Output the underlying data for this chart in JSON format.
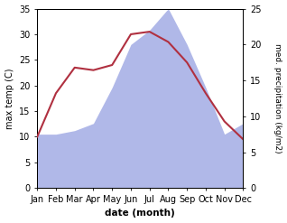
{
  "months": [
    "Jan",
    "Feb",
    "Mar",
    "Apr",
    "May",
    "Jun",
    "Jul",
    "Aug",
    "Sep",
    "Oct",
    "Nov",
    "Dec"
  ],
  "temperature": [
    10.0,
    18.5,
    23.5,
    23.0,
    24.0,
    30.0,
    30.5,
    28.5,
    24.5,
    18.5,
    13.0,
    9.5
  ],
  "precipitation": [
    7.5,
    7.5,
    8.0,
    9.0,
    14.0,
    20.0,
    22.0,
    25.0,
    20.0,
    14.0,
    7.5,
    9.0
  ],
  "temp_color": "#b03040",
  "precip_color": "#b0b8e8",
  "temp_ylim": [
    0,
    35
  ],
  "precip_ylim": [
    0,
    25
  ],
  "temp_yticks": [
    0,
    5,
    10,
    15,
    20,
    25,
    30,
    35
  ],
  "precip_yticks": [
    0,
    5,
    10,
    15,
    20,
    25
  ],
  "xlabel": "date (month)",
  "ylabel_left": "max temp (C)",
  "ylabel_right": "med. precipitation (kg/m2)",
  "bg_color": "#ffffff"
}
